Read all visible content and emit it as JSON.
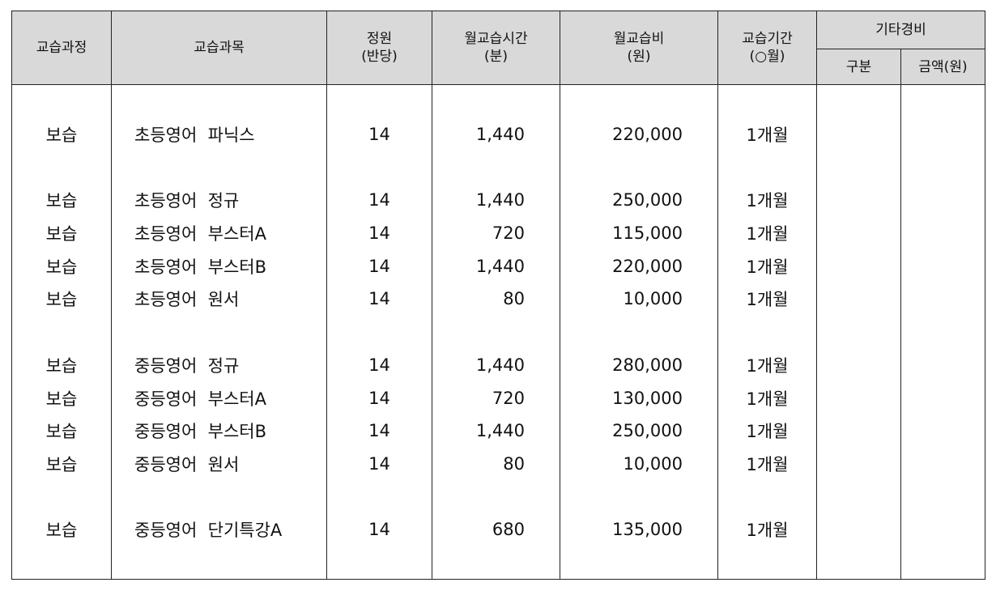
{
  "headers": {
    "course": "교습과정",
    "subject": "교습과목",
    "capacity": [
      "정원",
      "(반당)"
    ],
    "monthly_time": [
      "월교습시간",
      "(분)"
    ],
    "monthly_fee": [
      "월교습비",
      "(원)"
    ],
    "period": [
      "교습기간",
      "(○월)"
    ],
    "other_expenses": "기타경비",
    "category": "구분",
    "amount": "금액(원)"
  },
  "rows": [
    null,
    {
      "course": "보습",
      "subject": "초등영어  파닉스",
      "capacity": "14",
      "time": "1,440",
      "fee": "220,000",
      "period": "1개월",
      "category": "",
      "amount": ""
    },
    null,
    {
      "course": "보습",
      "subject": "초등영어  정규",
      "capacity": "14",
      "time": "1,440",
      "fee": "250,000",
      "period": "1개월",
      "category": "",
      "amount": ""
    },
    {
      "course": "보습",
      "subject": "초등영어  부스터A",
      "capacity": "14",
      "time": "720",
      "fee": "115,000",
      "period": "1개월",
      "category": "",
      "amount": ""
    },
    {
      "course": "보습",
      "subject": "초등영어  부스터B",
      "capacity": "14",
      "time": "1,440",
      "fee": "220,000",
      "period": "1개월",
      "category": "",
      "amount": ""
    },
    {
      "course": "보습",
      "subject": "초등영어  원서",
      "capacity": "14",
      "time": "80",
      "fee": "10,000",
      "period": "1개월",
      "category": "",
      "amount": ""
    },
    null,
    {
      "course": "보습",
      "subject": "중등영어  정규",
      "capacity": "14",
      "time": "1,440",
      "fee": "280,000",
      "period": "1개월",
      "category": "",
      "amount": ""
    },
    {
      "course": "보습",
      "subject": "중등영어  부스터A",
      "capacity": "14",
      "time": "720",
      "fee": "130,000",
      "period": "1개월",
      "category": "",
      "amount": ""
    },
    {
      "course": "보습",
      "subject": "중등영어  부스터B",
      "capacity": "14",
      "time": "1,440",
      "fee": "250,000",
      "period": "1개월",
      "category": "",
      "amount": ""
    },
    {
      "course": "보습",
      "subject": "중등영어  원서",
      "capacity": "14",
      "time": "80",
      "fee": "10,000",
      "period": "1개월",
      "category": "",
      "amount": ""
    },
    null,
    {
      "course": "보습",
      "subject": "중등영어  단기특강A",
      "capacity": "14",
      "time": "680",
      "fee": "135,000",
      "period": "1개월",
      "category": "",
      "amount": ""
    },
    null
  ]
}
